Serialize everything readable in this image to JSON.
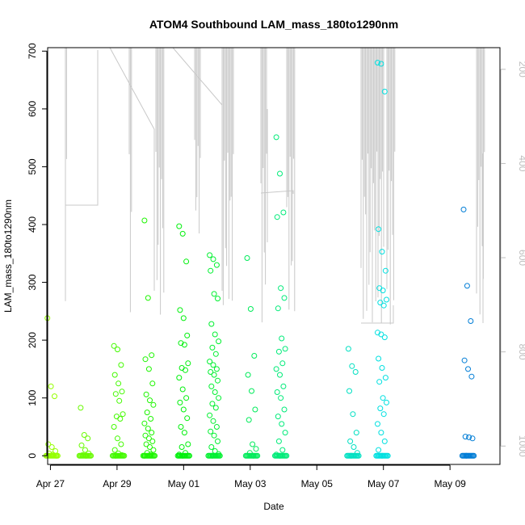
{
  "chart_data": {
    "type": "scatter",
    "title": "ATOM4 Southbound LAM_mass_180to1290nm",
    "xlabel": "Date",
    "ylabel": "LAM_mass_180to1290nm",
    "xlim": [
      "2016-04-26 22:00",
      "2016-05-10 12:00"
    ],
    "ylim": [
      -15,
      706
    ],
    "x_ticks": [
      {
        "date": "2016-04-27",
        "label": "Apr 27"
      },
      {
        "date": "2016-04-29",
        "label": "Apr 29"
      },
      {
        "date": "2016-05-01",
        "label": "May 01"
      },
      {
        "date": "2016-05-03",
        "label": "May 03"
      },
      {
        "date": "2016-05-05",
        "label": "May 05"
      },
      {
        "date": "2016-05-07",
        "label": "May 07"
      },
      {
        "date": "2016-05-09",
        "label": "May 09"
      }
    ],
    "y_ticks": [
      0,
      100,
      200,
      300,
      400,
      500,
      600,
      700
    ],
    "y2_label": "",
    "y2_lim": [
      1039,
      154
    ],
    "y2_ticks": [
      200,
      400,
      600,
      800,
      1000
    ],
    "y2_color": "#bdbdbd",
    "grid": false,
    "marker": "open-circle",
    "color_scale": "time: green (Apr 27) to cyan/blue (May 09)",
    "series": [
      {
        "clusters": [
          {
            "center": "2016-04-27 01:00",
            "values": [
              238,
              120,
              103,
              20,
              15,
              8,
              4,
              2,
              0
            ]
          },
          {
            "center": "2016-04-28 01:00",
            "values": [
              83,
              36,
              30,
              18,
              10,
              4,
              1,
              0
            ]
          },
          {
            "center": "2016-04-29 01:00",
            "values": [
              190,
              184,
              157,
              140,
              125,
              111,
              107,
              95,
              72,
              68,
              64,
              50,
              30,
              20,
              10,
              4,
              1,
              0
            ]
          },
          {
            "center": "2016-04-29 23:00",
            "values": [
              407,
              273,
              174,
              167,
              150,
              125,
              106,
              96,
              88,
              75,
              64,
              56,
              47,
              40,
              35,
              30,
              25,
              20,
              15,
              10,
              5,
              2,
              0
            ]
          },
          {
            "center": "2016-05-01 00:00",
            "values": [
              397,
              384,
              336,
              252,
              238,
              208,
              195,
              192,
              160,
              152,
              148,
              135,
              115,
              100,
              92,
              80,
              65,
              50,
              40,
              20,
              15,
              5,
              2,
              0
            ]
          },
          {
            "center": "2016-05-01 22:00",
            "values": [
              347,
              340,
              330,
              320,
              280,
              272,
              228,
              210,
              198,
              187,
              176,
              163,
              157,
              150,
              145,
              140,
              130,
              120,
              110,
              100,
              90,
              83,
              70,
              60,
              50,
              42,
              35,
              25,
              15,
              8,
              3,
              0
            ]
          },
          {
            "center": "2016-05-03 01:00",
            "values": [
              342,
              254,
              173,
              140,
              112,
              80,
              62,
              20,
              12,
              5,
              0
            ]
          },
          {
            "center": "2016-05-03 22:00",
            "values": [
              551,
              488,
              421,
              413,
              290,
              273,
              255,
              203,
              185,
              180,
              160,
              150,
              140,
              120,
              110,
              100,
              80,
              68,
              55,
              40,
              25,
              10,
              2,
              0
            ]
          },
          {
            "center": "2016-05-06 02:00",
            "values": [
              185,
              155,
              145,
              112,
              72,
              40,
              25,
              15,
              5,
              0
            ]
          },
          {
            "center": "2016-05-06 23:00",
            "values": [
              680,
              678,
              630,
              392,
              353,
              320,
              290,
              286,
              270,
              265,
              260,
              213,
              210,
              205,
              168,
              152,
              135,
              128,
              100,
              92,
              82,
              72,
              55,
              40,
              25,
              10,
              0
            ]
          },
          {
            "center": "2016-05-09 13:00",
            "values": [
              426,
              294,
              233,
              165,
              150,
              137,
              33,
              32,
              30,
              0
            ]
          }
        ]
      }
    ]
  }
}
